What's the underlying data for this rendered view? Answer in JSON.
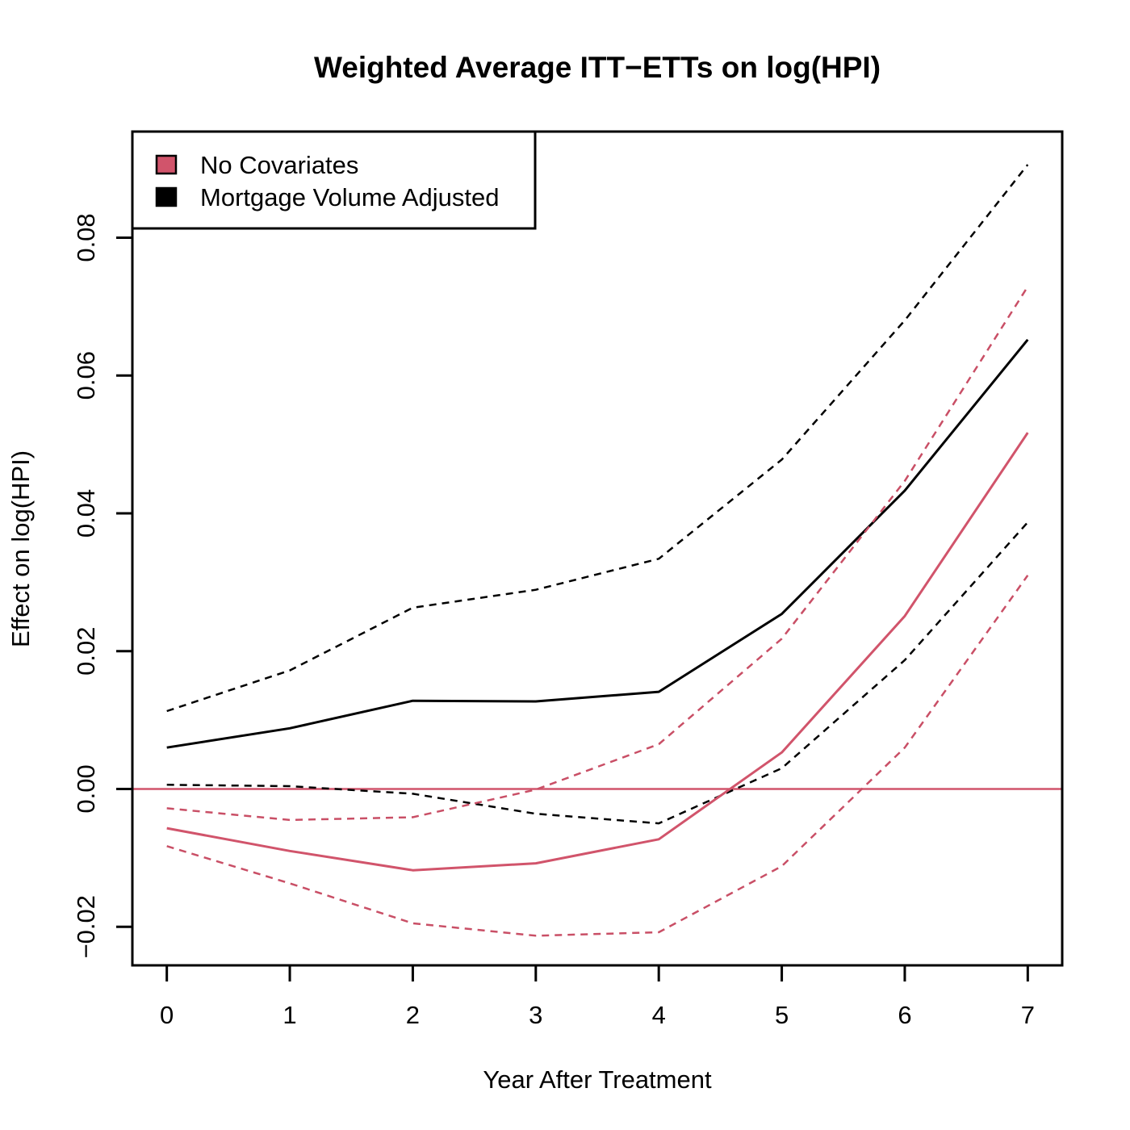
{
  "chart_data": {
    "type": "line",
    "title": "Weighted Average ITT−ETTs on log(HPI)",
    "xlabel": "Year After Treatment",
    "ylabel": "Effect on log(HPI)",
    "x": [
      0,
      1,
      2,
      3,
      4,
      5,
      6,
      7
    ],
    "xlim": [
      -0.28,
      7.28
    ],
    "ylim": [
      -0.0256,
      0.0954
    ],
    "xticks": [
      "0",
      "1",
      "2",
      "3",
      "4",
      "5",
      "6",
      "7"
    ],
    "yticks": [
      -0.02,
      0.0,
      0.02,
      0.04,
      0.06,
      0.08
    ],
    "ytick_labels": [
      "−0.02",
      "0.00",
      "0.02",
      "0.04",
      "0.06",
      "0.08"
    ],
    "reference_line": {
      "y": 0.0,
      "color": "#d1546b"
    },
    "legend": {
      "position": "top-left",
      "entries": [
        {
          "label": "No Covariates",
          "color": "#d1546b"
        },
        {
          "label": "Mortgage Volume Adjusted",
          "color": "#000000"
        }
      ]
    },
    "series": [
      {
        "name": "Mortgage Volume Adjusted (estimate)",
        "group": "Mortgage Volume Adjusted",
        "style": "solid",
        "color": "#000000",
        "values": [
          0.006,
          0.0088,
          0.0128,
          0.0127,
          0.0141,
          0.0254,
          0.0433,
          0.0652
        ]
      },
      {
        "name": "Mortgage Volume Adjusted (upper CI)",
        "group": "Mortgage Volume Adjusted",
        "style": "dashed",
        "color": "#000000",
        "values": [
          0.0113,
          0.0172,
          0.0263,
          0.0289,
          0.0334,
          0.0478,
          0.068,
          0.0906
        ]
      },
      {
        "name": "Mortgage Volume Adjusted (lower CI)",
        "group": "Mortgage Volume Adjusted",
        "style": "dashed",
        "color": "#000000",
        "values": [
          0.0006,
          0.0004,
          -0.0007,
          -0.0036,
          -0.005,
          0.003,
          0.0187,
          0.0387
        ]
      },
      {
        "name": "No Covariates (estimate)",
        "group": "No Covariates",
        "style": "solid",
        "color": "#d1546b",
        "values": [
          -0.0057,
          -0.009,
          -0.0118,
          -0.0108,
          -0.0073,
          0.0053,
          0.0251,
          0.0517
        ]
      },
      {
        "name": "No Covariates (upper CI)",
        "group": "No Covariates",
        "style": "dashed",
        "color": "#c94f66",
        "values": [
          -0.0028,
          -0.0045,
          -0.0041,
          -0.0001,
          0.0065,
          0.0218,
          0.0447,
          0.0729
        ]
      },
      {
        "name": "No Covariates (lower CI)",
        "group": "No Covariates",
        "style": "dashed",
        "color": "#c94f66",
        "values": [
          -0.0083,
          -0.0137,
          -0.0195,
          -0.0213,
          -0.0208,
          -0.0112,
          0.006,
          0.031
        ]
      }
    ]
  }
}
